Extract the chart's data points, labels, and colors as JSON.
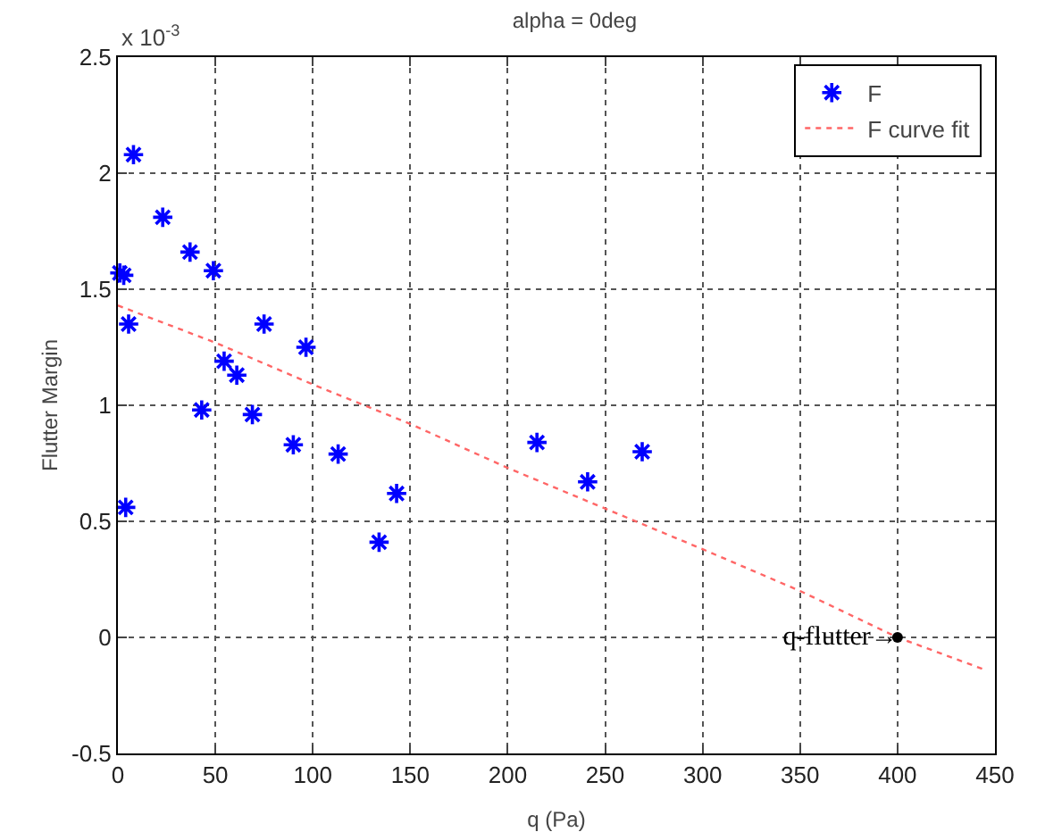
{
  "chart_data": {
    "type": "scatter",
    "title": "alpha = 0deg",
    "xlabel": "q (Pa)",
    "ylabel": "Flutter Margin",
    "xlim": [
      0,
      450
    ],
    "xticks": [
      0,
      50,
      100,
      150,
      200,
      250,
      300,
      350,
      400,
      450
    ],
    "ylim": [
      -0.5,
      2.5
    ],
    "yticks": [
      -0.5,
      0,
      0.5,
      1,
      1.5,
      2,
      2.5
    ],
    "grid": true,
    "legend": "top right",
    "annotations": [
      "x 10$^{-3}$",
      {
        "text": "q-flutter→",
        "x": 400,
        "y": 0
      }
    ],
    "series": [
      {
        "name": "F",
        "marker": "cross",
        "color": "#0000ff",
        "x": [
          1,
          3,
          8,
          5.5,
          23,
          37,
          49,
          43,
          54.5,
          61,
          75,
          69,
          96.5,
          4,
          90,
          113,
          134,
          143,
          215,
          241,
          269
        ],
        "values": [
          1.57,
          1.56,
          2.08,
          1.35,
          1.81,
          1.66,
          1.58,
          0.98,
          1.19,
          1.13,
          1.35,
          0.96,
          1.25,
          0.56,
          0.83,
          0.79,
          0.41,
          0.62,
          0.84,
          0.67,
          0.8
        ]
      },
      {
        "name": "F curve fit",
        "type": "line",
        "marker": "none",
        "line_style": "dotted",
        "color": "#ff6666",
        "x": [
          0,
          50,
          100,
          150,
          200,
          250,
          300,
          350,
          400,
          445
        ],
        "values": [
          1.43,
          1.27,
          1.09,
          0.92,
          0.73,
          0.555,
          0.38,
          0.2,
          0,
          -0.14
        ]
      },
      {
        "marker": "circle",
        "color": "#000000",
        "x": [
          400
        ],
        "values": [
          0
        ]
      }
    ]
  }
}
